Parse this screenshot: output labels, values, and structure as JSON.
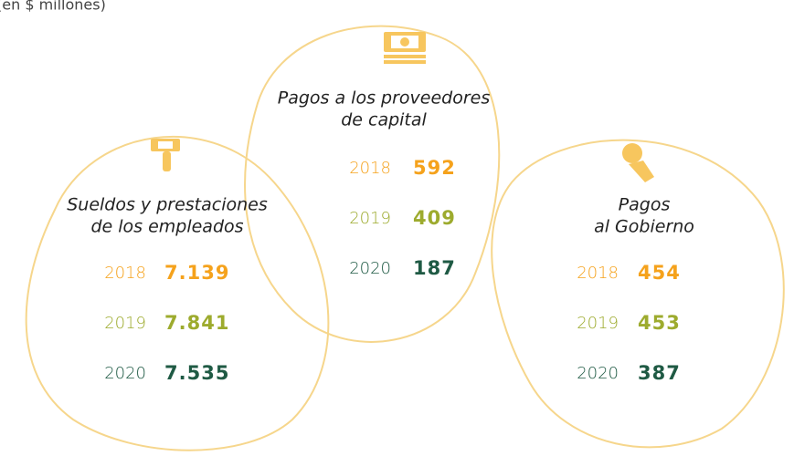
{
  "note": "(en $ millones)",
  "groups": [
    {
      "title_lines": [
        "Sueldos y prestaciones",
        "de los empleados"
      ],
      "rows": [
        {
          "year": "2018",
          "value": "7.139"
        },
        {
          "year": "2019",
          "value": "7.841"
        },
        {
          "year": "2020",
          "value": "7.535"
        }
      ]
    },
    {
      "title_lines": [
        "Pagos a los proveedores",
        "de capital"
      ],
      "rows": [
        {
          "year": "2018",
          "value": "592"
        },
        {
          "year": "2019",
          "value": "409"
        },
        {
          "year": "2020",
          "value": "187"
        }
      ]
    },
    {
      "title_lines": [
        "Pagos",
        "al Gobierno"
      ],
      "rows": [
        {
          "year": "2018",
          "value": "454"
        },
        {
          "year": "2019",
          "value": "453"
        },
        {
          "year": "2020",
          "value": "387"
        }
      ]
    }
  ]
}
